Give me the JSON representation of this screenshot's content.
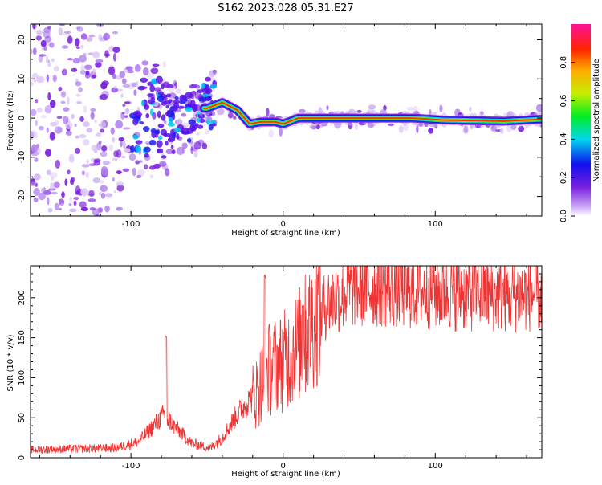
{
  "page": {
    "title": "S162.2023.028.05.31.E27"
  },
  "colors": {
    "background": "#ffffff",
    "snr_line": "#ee3333",
    "axis": "#000000"
  },
  "chart_data": [
    {
      "type": "heatmap",
      "xlabel": "Height of straight line (km)",
      "ylabel": "Frequency (Hz)",
      "xlim": [
        -166,
        170
      ],
      "ylim": [
        -25,
        24
      ],
      "x_ticks": [
        -100,
        0,
        100
      ],
      "y_ticks": [
        -20,
        -10,
        0,
        10,
        20
      ],
      "colorbar": {
        "label": "Normalized spectral amplitude",
        "range": [
          0,
          1
        ],
        "ticks": [
          0.0,
          0.2,
          0.4,
          0.6,
          0.8
        ],
        "colormap": "rainbow (violet → blue → cyan → green → yellow → orange → red → magenta)"
      },
      "ridge": {
        "description": "narrow high-amplitude frequency line",
        "points": [
          {
            "x": -50,
            "y": 2.5
          },
          {
            "x": -40,
            "y": 4
          },
          {
            "x": -30,
            "y": 2
          },
          {
            "x": -22,
            "y": -1.5
          },
          {
            "x": -15,
            "y": -1
          },
          {
            "x": -5,
            "y": -1
          },
          {
            "x": 0,
            "y": -1.5
          },
          {
            "x": 10,
            "y": 0
          },
          {
            "x": 40,
            "y": 0
          },
          {
            "x": 85,
            "y": 0
          },
          {
            "x": 105,
            "y": -0.5
          },
          {
            "x": 145,
            "y": -0.8
          },
          {
            "x": 170,
            "y": -0.3
          }
        ]
      }
    },
    {
      "type": "line",
      "xlabel": "Height of straight line (km)",
      "ylabel": "SNR (10 * v/v)",
      "xlim": [
        -166,
        170
      ],
      "ylim": [
        0,
        240
      ],
      "x_ticks": [
        -100,
        0,
        100
      ],
      "y_ticks": [
        0,
        50,
        100,
        150,
        200
      ],
      "series": [
        {
          "color": "#ee3333",
          "envelope": [
            {
              "x": -166,
              "y": 10
            },
            {
              "x": -110,
              "y": 12
            },
            {
              "x": -95,
              "y": 20
            },
            {
              "x": -85,
              "y": 40
            },
            {
              "x": -78,
              "y": 55
            },
            {
              "x": -72,
              "y": 40
            },
            {
              "x": -60,
              "y": 18
            },
            {
              "x": -48,
              "y": 12
            },
            {
              "x": -40,
              "y": 25
            },
            {
              "x": -30,
              "y": 55
            },
            {
              "x": -18,
              "y": 80
            },
            {
              "x": -10,
              "y": 110
            },
            {
              "x": 0,
              "y": 120
            },
            {
              "x": 10,
              "y": 140
            },
            {
              "x": 20,
              "y": 170
            },
            {
              "x": 30,
              "y": 195
            },
            {
              "x": 45,
              "y": 210
            },
            {
              "x": 60,
              "y": 212
            },
            {
              "x": 90,
              "y": 208
            },
            {
              "x": 120,
              "y": 205
            },
            {
              "x": 150,
              "y": 203
            },
            {
              "x": 170,
              "y": 205
            }
          ],
          "peaks": [
            {
              "x": -77,
              "y": 155
            },
            {
              "x": -12,
              "y": 230
            },
            {
              "x": 13,
              "y": 192
            }
          ]
        }
      ]
    }
  ]
}
